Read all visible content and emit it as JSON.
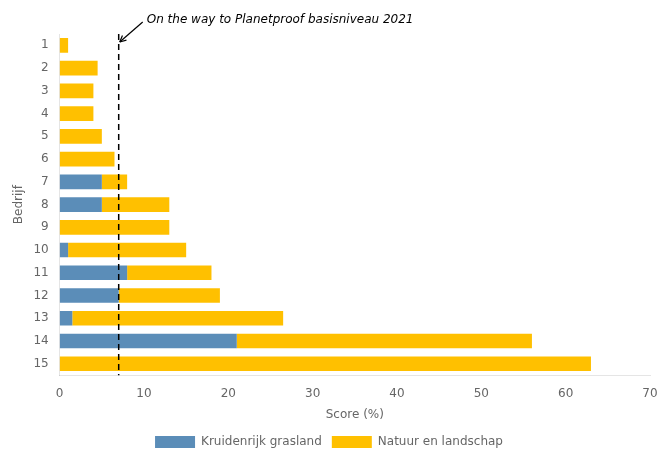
{
  "chart_data": {
    "type": "bar",
    "orientation": "horizontal",
    "stacked": true,
    "categories": [
      "1",
      "2",
      "3",
      "4",
      "5",
      "6",
      "7",
      "8",
      "9",
      "10",
      "11",
      "12",
      "13",
      "14",
      "15"
    ],
    "series": [
      {
        "name": "Kruidenrijk grasland",
        "color": "#5B8DB8",
        "values": [
          0,
          0,
          0,
          0,
          0,
          0,
          5,
          5,
          0,
          1,
          8,
          7,
          1.5,
          21,
          0
        ]
      },
      {
        "name": "Natuur en landschap",
        "color": "#FFC000",
        "values": [
          1,
          4.5,
          4,
          4,
          5,
          6.5,
          3,
          8,
          13,
          14,
          10,
          12,
          25,
          35,
          63
        ]
      }
    ],
    "xlabel": "Score (%)",
    "ylabel": "Bedrijf",
    "xlim": [
      0,
      70
    ],
    "xticks": [
      0,
      10,
      20,
      30,
      40,
      50,
      60,
      70
    ],
    "annotation": {
      "text": "On the way to Planetproof basisniveau 2021",
      "x": 7
    },
    "legend": "bottom",
    "grid": false
  }
}
